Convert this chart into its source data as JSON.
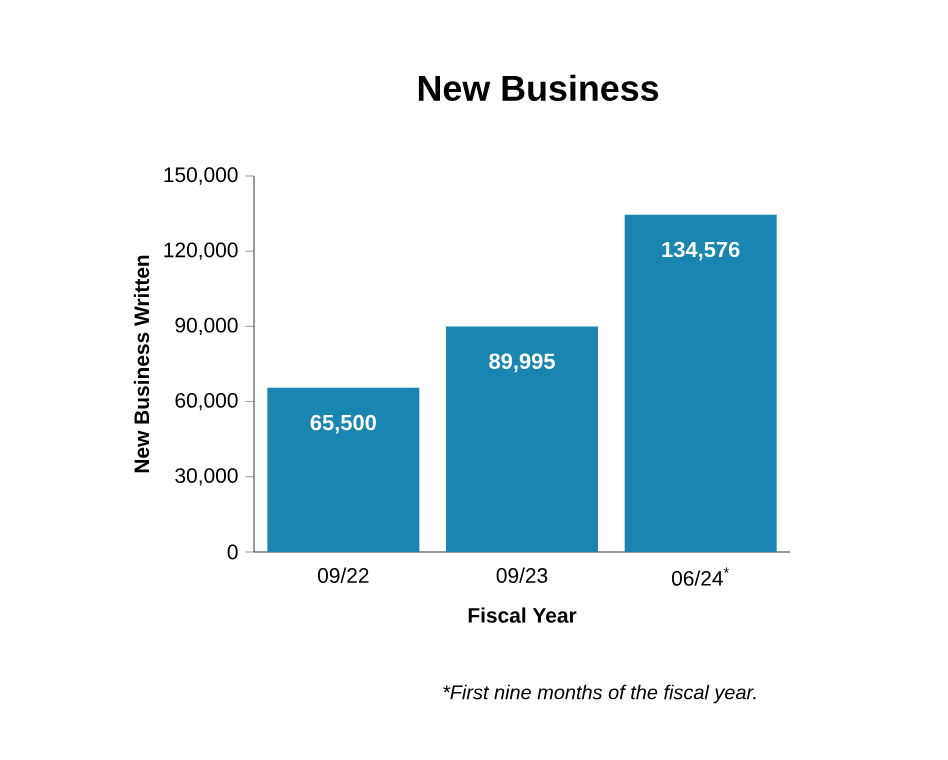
{
  "chart_data": {
    "type": "bar",
    "title": "New Business",
    "xlabel": "Fiscal Year",
    "ylabel": "New Business Written",
    "categories": [
      "09/22",
      "09/23",
      "06/24$^{*}$"
    ],
    "values": [
      65500,
      89995,
      134576
    ],
    "value_labels": [
      "65,500",
      "89,995",
      "134,576"
    ],
    "color": "#1a85b0",
    "ylim": [
      0,
      150000
    ],
    "yticks": [
      0,
      {
        "value": 30000,
        "label": "30,000"
      },
      {
        "value": 60000,
        "label": "60,000"
      },
      {
        "value": 90000,
        "label": "90,000"
      },
      {
        "value": 120000,
        "label": "120,000"
      },
      {
        "value": 150000,
        "label": "150,000"
      }
    ],
    "annotations": [
      "*First nine months of the fiscal year."
    ]
  }
}
